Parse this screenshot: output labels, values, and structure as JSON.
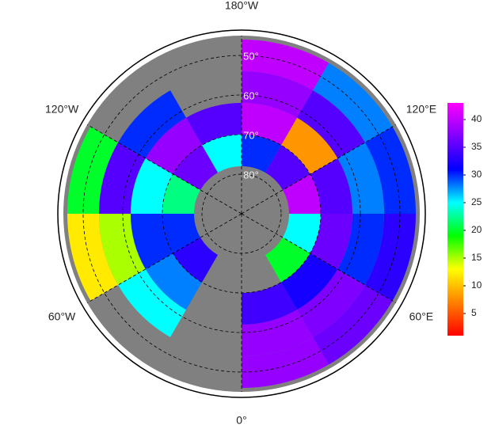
{
  "map": {
    "type": "polar-grid",
    "lon_labels": [
      {
        "value": -180,
        "label": "180°W"
      },
      {
        "value": -120,
        "label": "120°W"
      },
      {
        "value": 120,
        "label": "120°E"
      },
      {
        "value": -60,
        "label": "60°W"
      },
      {
        "value": 60,
        "label": "60°E"
      },
      {
        "value": 0,
        "label": "0°"
      }
    ],
    "lat_circles": [
      {
        "value": 50,
        "label": "50°"
      },
      {
        "value": 60,
        "label": "60°"
      },
      {
        "value": 70,
        "label": "70°"
      },
      {
        "value": 80,
        "label": "80°"
      }
    ],
    "meridians": [
      0,
      60,
      120,
      180,
      -120,
      -60
    ],
    "lat_edges": [
      46,
      54,
      62,
      70,
      78
    ],
    "lon_edges": [
      -180,
      -150,
      -120,
      -90,
      -60,
      -30,
      0,
      30,
      60,
      90,
      120,
      150,
      180
    ],
    "values": [
      [
        null,
        null,
        20,
        12,
        null,
        null,
        38,
        36,
        33,
        30,
        28,
        40
      ],
      [
        null,
        30,
        35,
        15,
        25,
        null,
        38,
        37,
        30,
        28,
        35,
        38
      ],
      [
        35,
        38,
        25,
        30,
        28,
        null,
        34,
        32,
        36,
        35,
        8,
        40
      ],
      [
        25,
        36,
        22,
        30,
        33,
        null,
        null,
        20,
        25,
        40,
        35,
        30
      ]
    ],
    "background": "#808080",
    "colormap": [
      "#ff0000",
      "#ff8000",
      "#ffff00",
      "#00ff00",
      "#00ffff",
      "#0000ff",
      "#8000ff",
      "#ff00ff"
    ],
    "clim": [
      1,
      43
    ],
    "colorbar_ticks": [
      5,
      10,
      15,
      20,
      25,
      30,
      35,
      40
    ]
  }
}
